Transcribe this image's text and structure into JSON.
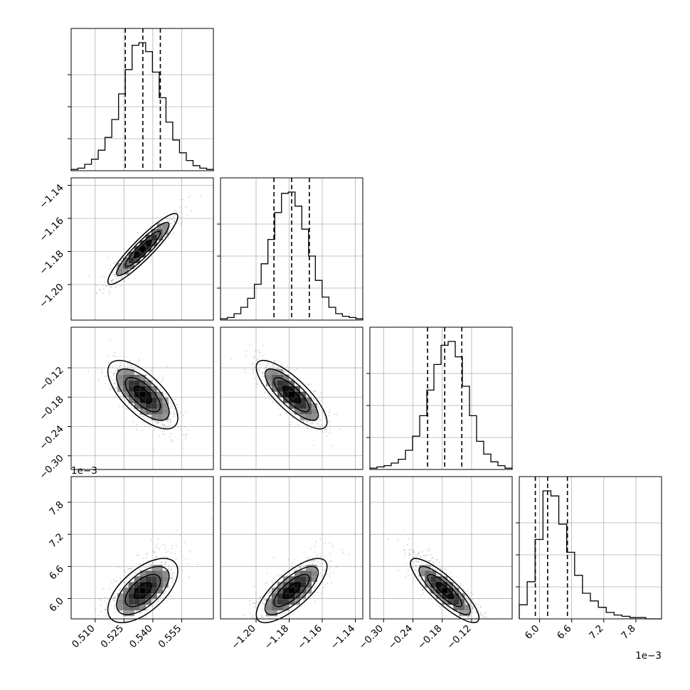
{
  "chart_data": {
    "type": "corner",
    "grid": true,
    "parameters": [
      {
        "range": [
          0.4975,
          0.5715
        ],
        "ticks": [
          0.51,
          0.525,
          0.54,
          0.555
        ],
        "tick_labels": [
          "0.510",
          "0.525",
          "0.540",
          "0.555"
        ],
        "offset_text": ""
      },
      {
        "range": [
          -1.2215,
          -1.1355
        ],
        "ticks": [
          -1.2,
          -1.18,
          -1.16,
          -1.14
        ],
        "tick_labels": [
          "−1.20",
          "−1.18",
          "−1.16",
          "−1.14"
        ],
        "offset_text": ""
      },
      {
        "range": [
          -0.328,
          -0.037
        ],
        "ticks": [
          -0.3,
          -0.24,
          -0.18,
          -0.12
        ],
        "tick_labels": [
          "−0.30",
          "−0.24",
          "−0.18",
          "−0.12"
        ],
        "offset_text": ""
      },
      {
        "range": [
          5.62,
          8.28
        ],
        "ticks": [
          6.0,
          6.6,
          7.2,
          7.8
        ],
        "tick_labels": [
          "6.0",
          "6.6",
          "7.2",
          "7.8"
        ],
        "offset_text": "1e−3"
      }
    ],
    "quantiles": [
      [
        0.5257,
        0.5348,
        0.5439
      ],
      [
        -1.1892,
        -1.1785,
        -1.1678
      ],
      [
        -0.21,
        -0.175,
        -0.14
      ],
      [
        5.92,
        6.15,
        6.52
      ]
    ],
    "histograms": [
      {
        "counts": [
          1,
          2,
          5,
          9,
          16,
          26,
          40,
          60,
          79,
          98,
          100,
          93,
          77,
          57,
          38,
          24,
          14,
          8,
          4,
          2,
          1
        ]
      },
      {
        "counts": [
          1,
          2,
          5,
          10,
          17,
          28,
          44,
          63,
          84,
          99,
          100,
          89,
          71,
          50,
          31,
          18,
          10,
          5,
          3,
          2,
          1
        ]
      },
      {
        "counts": [
          1,
          2,
          3,
          5,
          8,
          15,
          26,
          42,
          62,
          82,
          97,
          100,
          88,
          65,
          42,
          22,
          12,
          6,
          3,
          1
        ]
      },
      {
        "counts": [
          11,
          29,
          62,
          100,
          96,
          74,
          52,
          34,
          20,
          14,
          9,
          5,
          3,
          2,
          1,
          1,
          0,
          0
        ]
      }
    ],
    "correlations": {
      "1-0": 0.92,
      "2-0": -0.68,
      "2-1": -0.8,
      "3-0": 0.6,
      "3-1": 0.75,
      "3-2": -0.85
    }
  }
}
